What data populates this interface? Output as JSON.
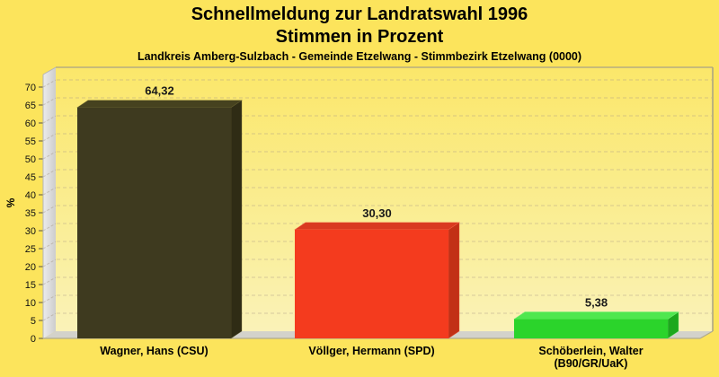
{
  "title_line1": "Schnellmeldung zur Landratswahl 1996",
  "title_line2": "Stimmen in Prozent",
  "subtitle": "Landkreis Amberg-Sulzbach - Gemeinde Etzelwang - Stimmbezirk Etzelwang (0000)",
  "colors": {
    "background": "#FCE45C",
    "plot_top": "#FBE76A",
    "plot_bottom": "#FAF2B8",
    "wall_light": "#ECECEC",
    "wall_dark": "#CDCDCD",
    "floor": "#D3D2CB",
    "grid": "#A89A88",
    "frame": "#A8A284",
    "text": "#000000"
  },
  "chart_data": {
    "type": "bar",
    "style": "3d-column",
    "title": "Schnellmeldung zur Landratswahl 1996 - Stimmen in Prozent",
    "xlabel": "",
    "ylabel": "%",
    "ylim": [
      0,
      70
    ],
    "ytick_step": 5,
    "grid": "horizontal-dashed",
    "legend": "none",
    "categories": [
      [
        "Wagner, Hans (CSU)"
      ],
      [
        "Völlger, Hermann (SPD)"
      ],
      [
        "Schöberlein, Walter",
        "(B90/GR/UaK)"
      ]
    ],
    "values": [
      64.32,
      30.3,
      5.38
    ],
    "value_labels": [
      "64,32",
      "30,30",
      "5,38"
    ],
    "bar_colors": [
      {
        "front": "#3E3A1F",
        "top": "#46421F",
        "side": "#2F2C15",
        "edge": "#6B6533"
      },
      {
        "front": "#F43B1E",
        "top": "#D93A20",
        "side": "#C23016",
        "edge": "#F4684A"
      },
      {
        "front": "#2BD42B",
        "top": "#4FE74F",
        "side": "#1DA81D",
        "edge": "#7BEF7B"
      }
    ]
  }
}
